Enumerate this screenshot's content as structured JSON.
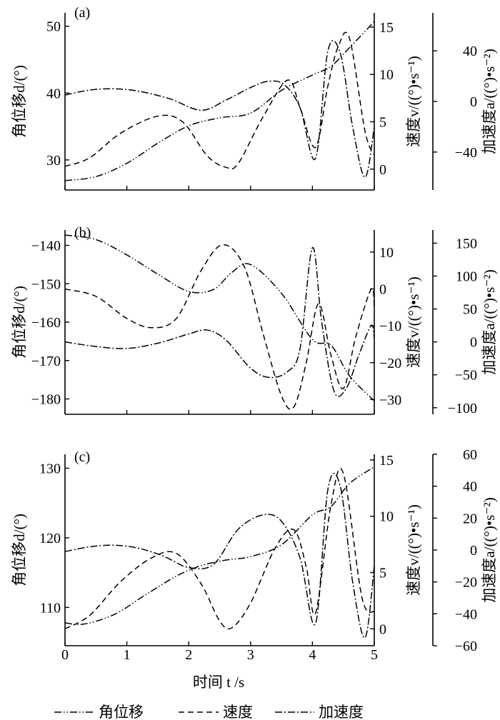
{
  "figure": {
    "xlabel": "时间 t /s",
    "xticks": [
      "0",
      "1",
      "2",
      "3",
      "4",
      "5"
    ],
    "legend": [
      {
        "label": "角位移",
        "style": "dash-dot-dot"
      },
      {
        "label": "速度",
        "style": "dashed"
      },
      {
        "label": "加速度",
        "style": "dash-dot"
      }
    ]
  },
  "chart_data": [
    {
      "type": "line",
      "panel_label": "(a)",
      "xlim": [
        0,
        5
      ],
      "ylabel_left": "角位移d/(°)",
      "ylabel_mid": "速度v/((°)•s⁻¹)",
      "ylabel_right": "加速度a/((°)•s⁻²)",
      "ylim_left": [
        25.5,
        52
      ],
      "ylim_mid": [
        -2.2,
        16.5
      ],
      "ylim_right": [
        -70,
        70
      ],
      "yticks_left": [
        "30",
        "40",
        "50"
      ],
      "yticks_mid": [
        "0",
        "5",
        "10",
        "15"
      ],
      "yticks_right": [
        "-40",
        "0",
        "40"
      ],
      "series": [
        {
          "name": "角位移",
          "axis": "left",
          "style": "dash-dot-dot",
          "x": [
            0,
            0.5,
            1,
            1.5,
            2,
            2.5,
            3,
            3.5,
            4,
            4.3,
            4.6,
            5
          ],
          "y": [
            26.9,
            27.5,
            29.5,
            32.5,
            35.1,
            36.3,
            37.0,
            40.4,
            42.7,
            44.0,
            46.8,
            50.7
          ]
        },
        {
          "name": "速度",
          "axis": "mid",
          "style": "dashed",
          "x": [
            0,
            0.4,
            0.9,
            1.5,
            1.9,
            2.3,
            2.6,
            2.8,
            3.2,
            3.6,
            3.8,
            4.05,
            4.25,
            4.42,
            4.6,
            4.85,
            5
          ],
          "y": [
            0.3,
            1.2,
            3.8,
            5.6,
            5.0,
            1.4,
            0.2,
            0.6,
            5.5,
            9.4,
            6.5,
            2.3,
            8.8,
            13.0,
            13.8,
            4.0,
            1.5
          ]
        },
        {
          "name": "加速度",
          "axis": "right",
          "style": "dash-dot",
          "x": [
            0,
            0.4,
            0.8,
            1.2,
            1.7,
            2.2,
            2.6,
            3.0,
            3.3,
            3.55,
            3.8,
            4.05,
            4.25,
            4.45,
            4.65,
            4.85,
            5
          ],
          "y": [
            5,
            9,
            10,
            8,
            2,
            -7,
            1,
            11,
            16,
            13,
            -5,
            -45,
            40,
            38,
            -20,
            -60,
            -20
          ]
        }
      ]
    },
    {
      "type": "line",
      "panel_label": "(b)",
      "xlim": [
        0,
        5
      ],
      "ylabel_left": "角位移d/(°)",
      "ylabel_mid": "速度v/((°)•s⁻¹)",
      "ylabel_right": "加速度a/((°)•s⁻²)",
      "ylim_left": [
        -184,
        -136
      ],
      "ylim_mid": [
        -34,
        16
      ],
      "ylim_right": [
        -110,
        170
      ],
      "yticks_left": [
        "-140",
        "-150",
        "-160",
        "-170",
        "-180"
      ],
      "yticks_mid": [
        "10",
        "0",
        "-10",
        "-20",
        "-30"
      ],
      "yticks_right": [
        "150",
        "100",
        "50",
        "0",
        "-50",
        "-100"
      ],
      "series": [
        {
          "name": "角位移",
          "axis": "left",
          "style": "dash-dot-dot",
          "x": [
            0,
            0.5,
            1,
            1.5,
            2,
            2.4,
            2.7,
            3,
            3.5,
            4,
            4.3,
            4.6,
            5
          ],
          "y": [
            -137.3,
            -138.5,
            -142.5,
            -147.5,
            -152.0,
            -151.5,
            -147.0,
            -145.0,
            -152.5,
            -164.5,
            -166.0,
            -174.0,
            -180.5
          ]
        },
        {
          "name": "速度",
          "axis": "mid",
          "style": "dashed",
          "x": [
            0,
            0.5,
            1,
            1.4,
            1.8,
            2.2,
            2.55,
            2.9,
            3.2,
            3.5,
            3.7,
            3.9,
            4.1,
            4.3,
            4.5,
            4.7,
            4.95,
            5
          ],
          "y": [
            0,
            -2,
            -8,
            -10.5,
            -8,
            5,
            12,
            6,
            -12,
            -29,
            -32,
            -20,
            -4,
            -18,
            -27,
            -13,
            0,
            -5
          ]
        },
        {
          "name": "加速度",
          "axis": "right",
          "style": "dash-dot",
          "x": [
            0,
            0.5,
            1,
            1.5,
            2,
            2.3,
            2.6,
            3,
            3.3,
            3.6,
            3.8,
            4.0,
            4.15,
            4.35,
            4.55,
            4.75,
            4.95,
            5
          ],
          "y": [
            0,
            -7,
            -10,
            -2,
            12,
            18,
            3,
            -40,
            -54,
            -45,
            -10,
            143,
            30,
            -75,
            -70,
            -20,
            25,
            5
          ]
        }
      ]
    },
    {
      "type": "line",
      "panel_label": "(c)",
      "xlim": [
        0,
        5
      ],
      "ylabel_left": "角位移d/(°)",
      "ylabel_mid": "速度v/((°)•s⁻¹)",
      "ylabel_right": "加速度a/((°)•s⁻²)",
      "ylim_left": [
        104.5,
        132
      ],
      "ylim_mid": [
        -1.5,
        15.5
      ],
      "ylim_right": [
        -60,
        60
      ],
      "yticks_left": [
        "110",
        "120",
        "130"
      ],
      "yticks_mid": [
        "0",
        "5",
        "10",
        "15"
      ],
      "yticks_right": [
        "60",
        "40",
        "20",
        "0",
        "-20",
        "-40",
        "-60"
      ],
      "series": [
        {
          "name": "角位移",
          "axis": "left",
          "style": "dash-dot-dot",
          "x": [
            0,
            0.3,
            0.8,
            1.3,
            1.8,
            2.2,
            2.6,
            3,
            3.5,
            4,
            4.3,
            4.6,
            5
          ],
          "y": [
            107.8,
            107.6,
            109.0,
            111.8,
            114.5,
            116.0,
            116.8,
            117.3,
            119.0,
            123.3,
            124.5,
            127.8,
            130.2
          ]
        },
        {
          "name": "速度",
          "axis": "mid",
          "style": "dashed",
          "x": [
            0,
            0.4,
            0.9,
            1.4,
            1.8,
            2.2,
            2.5,
            2.7,
            3.0,
            3.4,
            3.7,
            3.9,
            4.05,
            4.3,
            4.5,
            4.8,
            5
          ],
          "y": [
            0,
            1.2,
            4.2,
            6.3,
            6.7,
            4.0,
            0.7,
            0.1,
            2.3,
            7.2,
            8.8,
            5.5,
            1.4,
            11.0,
            13.8,
            2.8,
            1.5
          ]
        },
        {
          "name": "加速度",
          "axis": "right",
          "style": "dash-dot",
          "x": [
            0,
            0.4,
            0.8,
            1.2,
            1.6,
            2.0,
            2.4,
            2.8,
            3.2,
            3.5,
            3.8,
            4.05,
            4.25,
            4.45,
            4.65,
            4.85,
            5
          ],
          "y": [
            -1,
            2,
            3,
            1,
            -4,
            -11,
            -9,
            13,
            22,
            18,
            -5,
            -46,
            38,
            40,
            -20,
            -55,
            -10
          ]
        }
      ]
    }
  ]
}
